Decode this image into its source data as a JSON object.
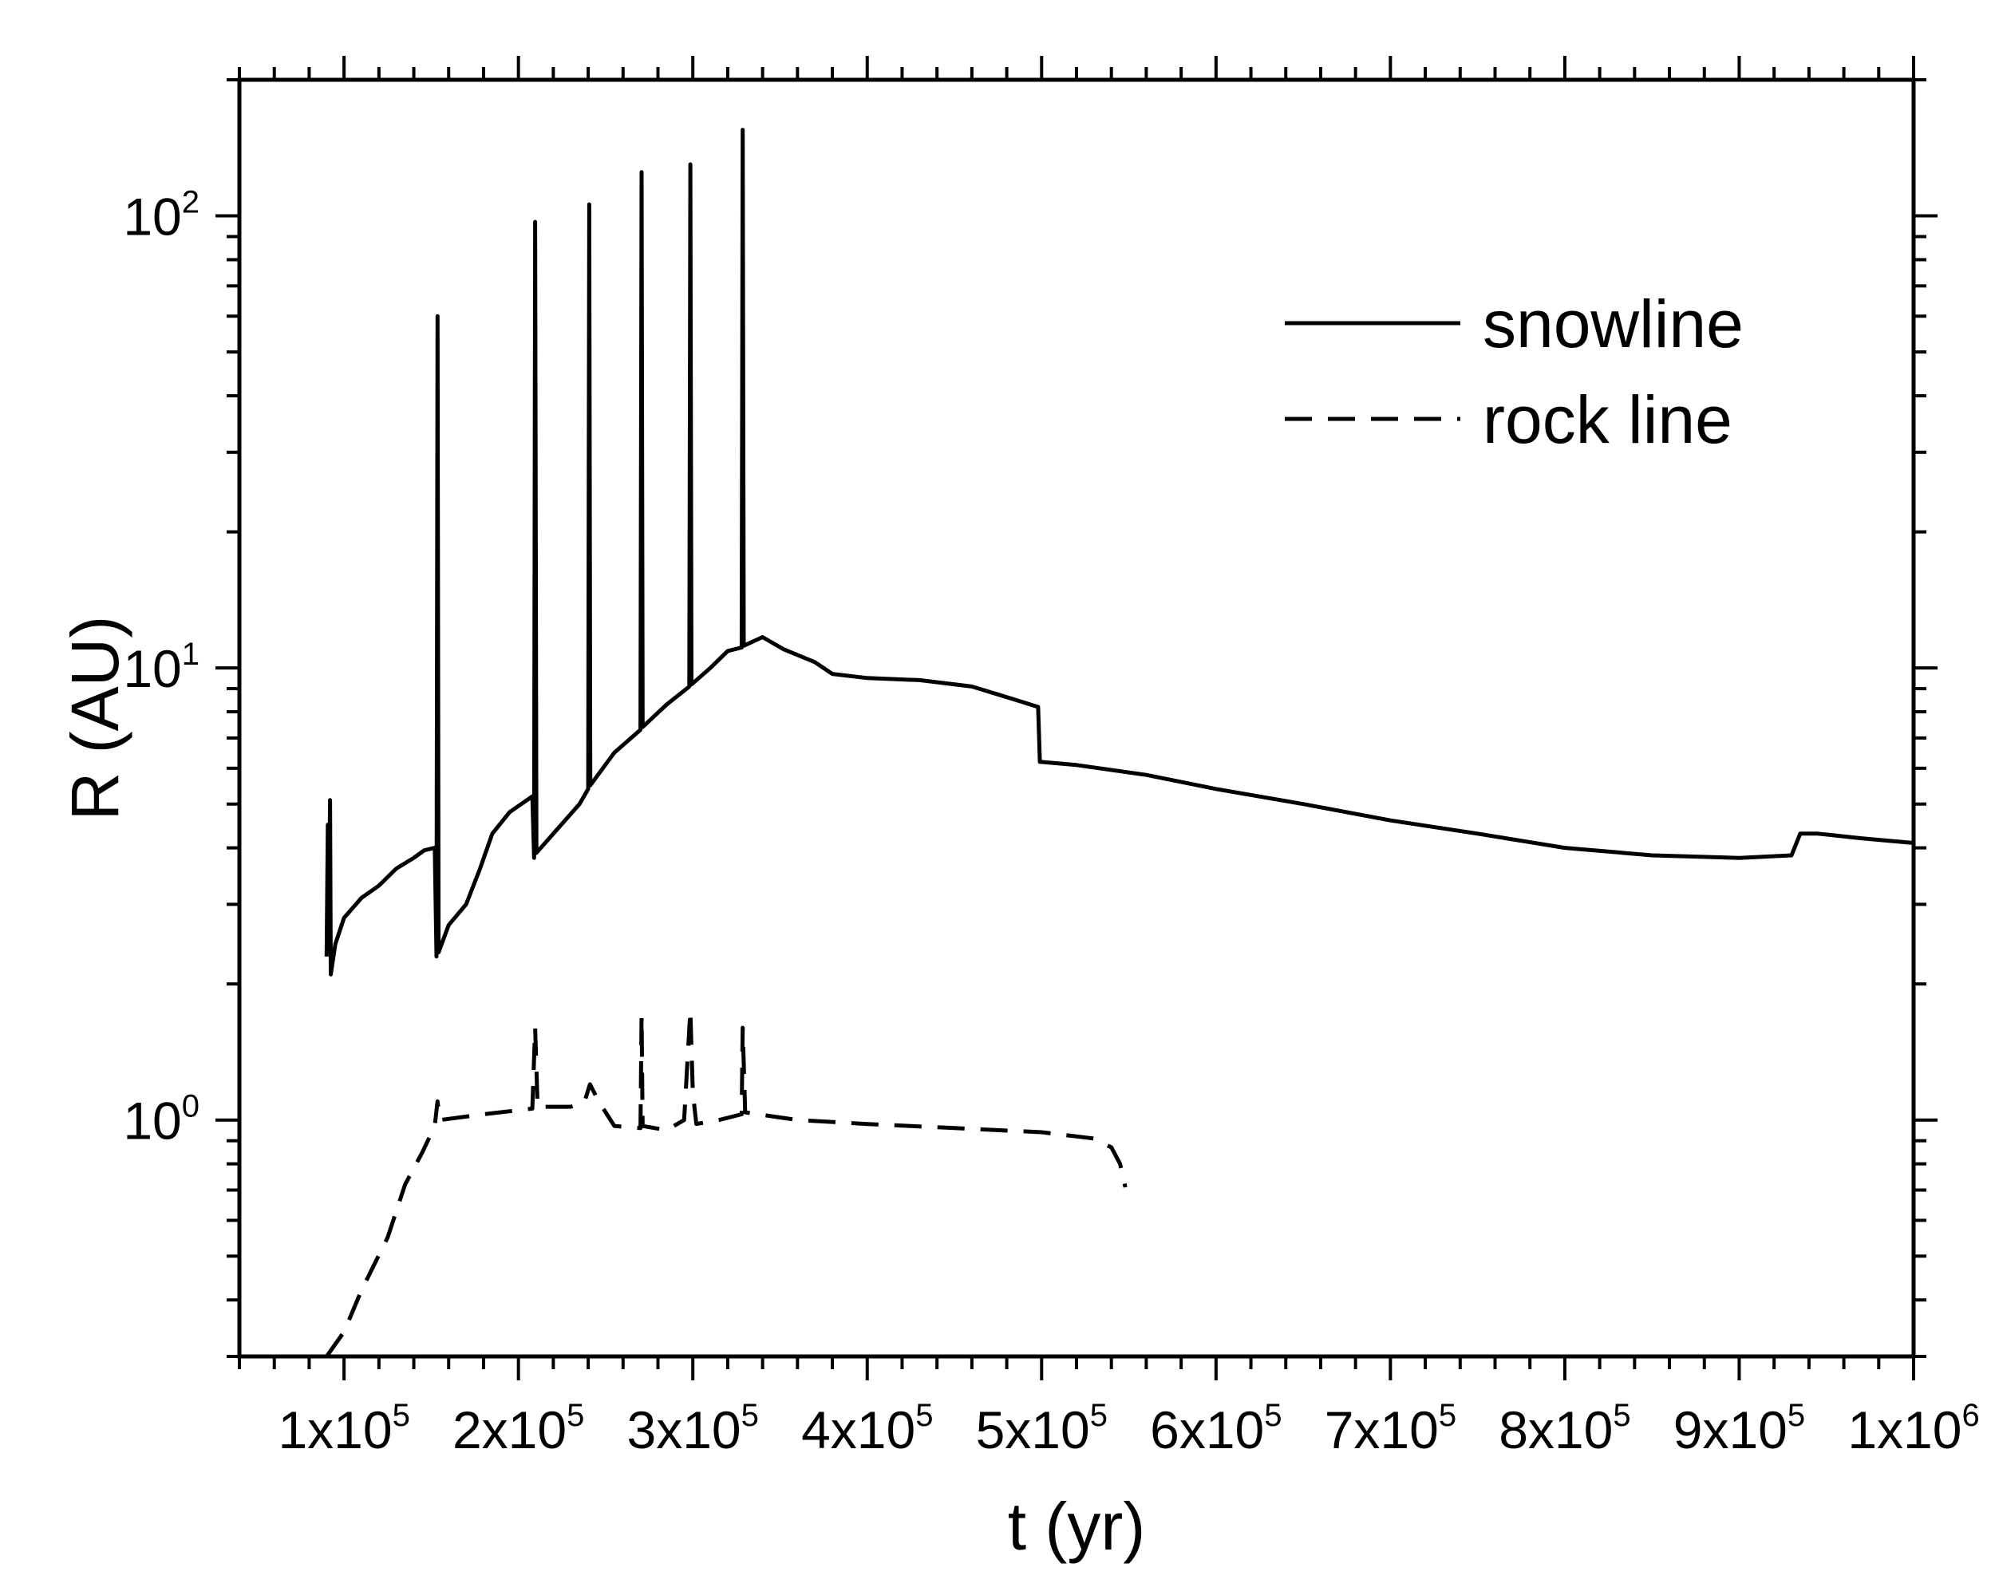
{
  "chart_data": {
    "type": "line",
    "xlabel": "t (yr)",
    "ylabel": "R (AU)",
    "xscale": "linear",
    "yscale": "log",
    "xlim": [
      40000,
      1000000
    ],
    "ylim": [
      0.3,
      200
    ],
    "x_ticks": [
      {
        "value": 100000,
        "base": "1x10",
        "exp": "5"
      },
      {
        "value": 200000,
        "base": "2x10",
        "exp": "5"
      },
      {
        "value": 300000,
        "base": "3x10",
        "exp": "5"
      },
      {
        "value": 400000,
        "base": "4x10",
        "exp": "5"
      },
      {
        "value": 500000,
        "base": "5x10",
        "exp": "5"
      },
      {
        "value": 600000,
        "base": "6x10",
        "exp": "5"
      },
      {
        "value": 700000,
        "base": "7x10",
        "exp": "5"
      },
      {
        "value": 800000,
        "base": "8x10",
        "exp": "5"
      },
      {
        "value": 900000,
        "base": "9x10",
        "exp": "5"
      },
      {
        "value": 1000000,
        "base": "1x10",
        "exp": "6"
      }
    ],
    "y_ticks": [
      {
        "value": 1,
        "base": "10",
        "exp": "0"
      },
      {
        "value": 10,
        "base": "10",
        "exp": "1"
      },
      {
        "value": 100,
        "base": "10",
        "exp": "2"
      }
    ],
    "legend_position": "top-right",
    "grid": false,
    "series": [
      {
        "name": "snowline",
        "style": "solid",
        "color": "#000000",
        "points": [
          [
            90000,
            2.3
          ],
          [
            90700,
            4.5
          ],
          [
            91200,
            2.4
          ],
          [
            92000,
            5.1
          ],
          [
            92400,
            2.1
          ],
          [
            95000,
            2.45
          ],
          [
            100000,
            2.8
          ],
          [
            110000,
            3.1
          ],
          [
            120000,
            3.3
          ],
          [
            130000,
            3.6
          ],
          [
            140000,
            3.8
          ],
          [
            146000,
            3.95
          ],
          [
            152000,
            4.0
          ],
          [
            153000,
            2.3
          ],
          [
            153600,
            60
          ],
          [
            154200,
            2.35
          ],
          [
            160000,
            2.7
          ],
          [
            170000,
            3.0
          ],
          [
            178000,
            3.6
          ],
          [
            185000,
            4.3
          ],
          [
            195000,
            4.8
          ],
          [
            208000,
            5.2
          ],
          [
            209000,
            3.8
          ],
          [
            209600,
            97
          ],
          [
            210300,
            3.9
          ],
          [
            220000,
            4.3
          ],
          [
            235000,
            5.0
          ],
          [
            240000,
            5.4
          ],
          [
            240600,
            106
          ],
          [
            241200,
            5.5
          ],
          [
            255000,
            6.5
          ],
          [
            270000,
            7.3
          ],
          [
            270600,
            125
          ],
          [
            271200,
            7.4
          ],
          [
            285000,
            8.3
          ],
          [
            298000,
            9.1
          ],
          [
            298600,
            130
          ],
          [
            299200,
            9.2
          ],
          [
            310000,
            10.0
          ],
          [
            320000,
            10.9
          ],
          [
            328000,
            11.1
          ],
          [
            328600,
            155
          ],
          [
            329200,
            11.2
          ],
          [
            340000,
            11.7
          ],
          [
            352000,
            11.0
          ],
          [
            370000,
            10.3
          ],
          [
            380000,
            9.7
          ],
          [
            400000,
            9.5
          ],
          [
            430000,
            9.4
          ],
          [
            460000,
            9.1
          ],
          [
            485000,
            8.5
          ],
          [
            498000,
            8.2
          ],
          [
            499000,
            6.2
          ],
          [
            520000,
            6.1
          ],
          [
            560000,
            5.8
          ],
          [
            600000,
            5.4
          ],
          [
            650000,
            5.0
          ],
          [
            700000,
            4.6
          ],
          [
            750000,
            4.3
          ],
          [
            800000,
            4.0
          ],
          [
            850000,
            3.85
          ],
          [
            900000,
            3.8
          ],
          [
            930000,
            3.85
          ],
          [
            935000,
            4.3
          ],
          [
            945000,
            4.3
          ],
          [
            970000,
            4.2
          ],
          [
            1000000,
            4.1
          ]
        ]
      },
      {
        "name": "rock line",
        "style": "dashed",
        "color": "#000000",
        "points": [
          [
            90000,
            0.3
          ],
          [
            100000,
            0.34
          ],
          [
            110000,
            0.42
          ],
          [
            125000,
            0.55
          ],
          [
            135000,
            0.72
          ],
          [
            145000,
            0.85
          ],
          [
            152000,
            0.97
          ],
          [
            153600,
            1.1
          ],
          [
            155000,
            1.0
          ],
          [
            180000,
            1.03
          ],
          [
            208000,
            1.06
          ],
          [
            209600,
            1.6
          ],
          [
            211000,
            1.07
          ],
          [
            230000,
            1.07
          ],
          [
            238000,
            1.1
          ],
          [
            241000,
            1.2
          ],
          [
            246000,
            1.1
          ],
          [
            255000,
            0.97
          ],
          [
            270000,
            0.96
          ],
          [
            270600,
            1.7
          ],
          [
            271200,
            0.97
          ],
          [
            285000,
            0.95
          ],
          [
            295000,
            1.0
          ],
          [
            298600,
            1.75
          ],
          [
            300000,
            1.15
          ],
          [
            302000,
            0.98
          ],
          [
            315000,
            1.0
          ],
          [
            328000,
            1.03
          ],
          [
            328600,
            1.6
          ],
          [
            330000,
            1.04
          ],
          [
            360000,
            1.0
          ],
          [
            400000,
            0.98
          ],
          [
            450000,
            0.96
          ],
          [
            500000,
            0.94
          ],
          [
            530000,
            0.91
          ],
          [
            540000,
            0.87
          ],
          [
            545000,
            0.8
          ],
          [
            548000,
            0.71
          ]
        ]
      }
    ]
  }
}
